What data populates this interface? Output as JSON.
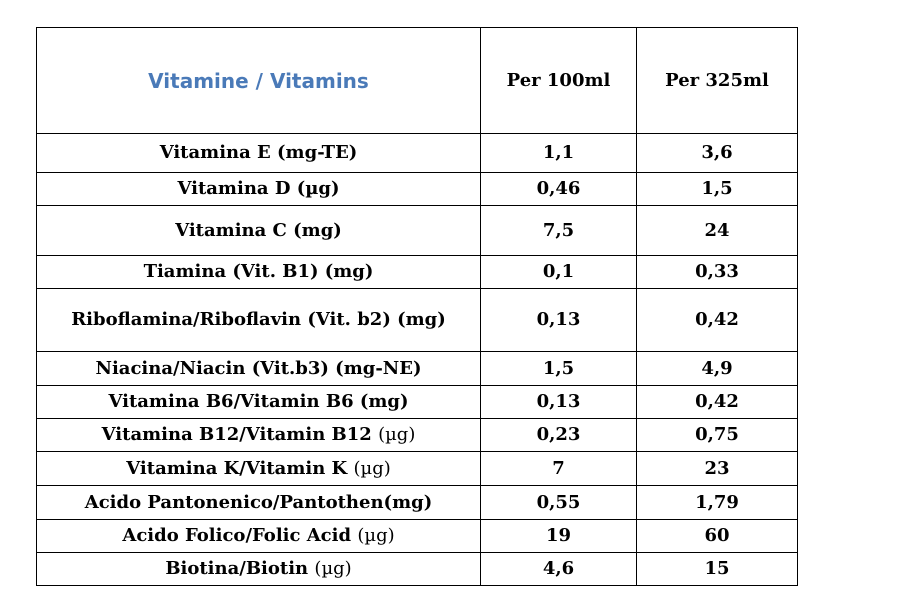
{
  "table": {
    "title": "Vitamine / Vitamins",
    "columns": [
      "Per 100ml",
      "Per 325ml"
    ],
    "title_color": "#4a7ab8",
    "rows": [
      {
        "name": "Vitamina E (mg-TE)",
        "unit_suffix": "",
        "per100": "1,1",
        "per325": "3,6"
      },
      {
        "name": "Vitamina D (µg)",
        "unit_suffix": "",
        "per100": "0,46",
        "per325": "1,5"
      },
      {
        "name": "Vitamina C (mg)",
        "unit_suffix": "",
        "per100": "7,5",
        "per325": "24"
      },
      {
        "name": "Tiamina (Vit. B1) (mg)",
        "unit_suffix": "",
        "per100": "0,1",
        "per325": "0,33"
      },
      {
        "name": "Riboflamina/Riboflavin (Vit. b2) (mg)",
        "unit_suffix": "",
        "per100": "0,13",
        "per325": "0,42"
      },
      {
        "name": "Niacina/Niacin (Vit.b3) (mg-NE)",
        "unit_suffix": "",
        "per100": "1,5",
        "per325": "4,9"
      },
      {
        "name": "Vitamina B6/Vitamin B6 (mg)",
        "unit_suffix": "",
        "per100": "0,13",
        "per325": "0,42"
      },
      {
        "name": "Vitamina B12/Vitamin B12 ",
        "unit_suffix": "(µg)",
        "per100": "0,23",
        "per325": "0,75"
      },
      {
        "name": "Vitamina K/Vitamin K ",
        "unit_suffix": "(µg)",
        "per100": "7",
        "per325": "23"
      },
      {
        "name": "Acido Pantonenico/Pantothen(mg)",
        "unit_suffix": "",
        "per100": "0,55",
        "per325": "1,79"
      },
      {
        "name": "Acido Folico/Folic Acid ",
        "unit_suffix": "(µg)",
        "per100": "19",
        "per325": "60"
      },
      {
        "name": "Biotina/Biotin ",
        "unit_suffix": "(µg)",
        "per100": "4,6",
        "per325": "15"
      }
    ]
  }
}
